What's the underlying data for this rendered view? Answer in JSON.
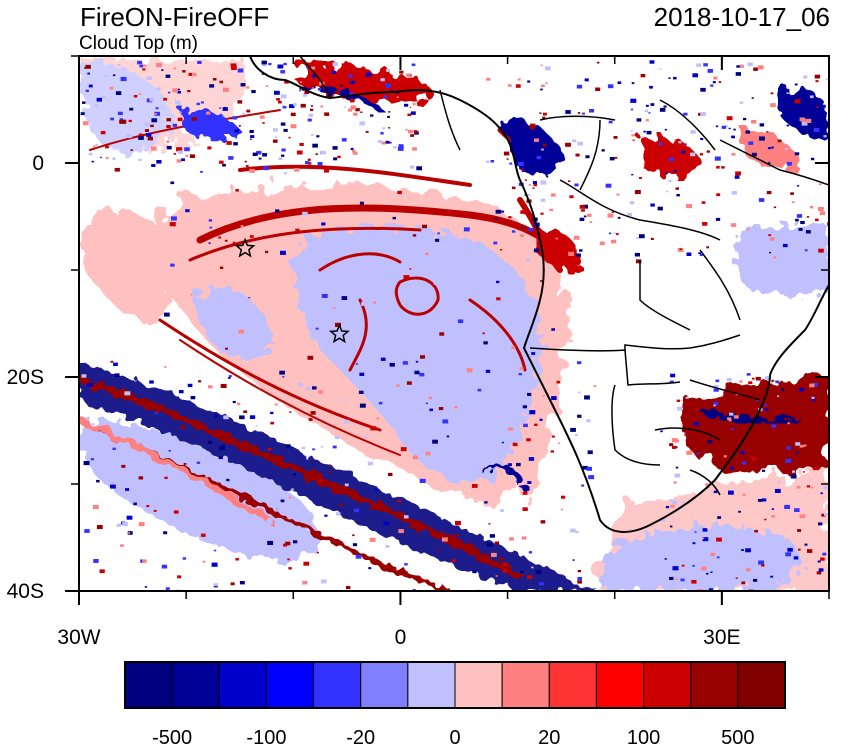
{
  "header": {
    "title": "FireON-FireOFF",
    "subtitle": "Cloud Top (m)",
    "timestamp": "2018-10-17_06"
  },
  "map": {
    "lon_range": [
      -30,
      40
    ],
    "lat_range": [
      -40,
      10
    ],
    "x_ticks": [
      {
        "lon": -30,
        "label": "30W"
      },
      {
        "lon": 0,
        "label": "0"
      },
      {
        "lon": 30,
        "label": "30E"
      }
    ],
    "y_ticks": [
      {
        "lat": 0,
        "label": "0"
      },
      {
        "lat": -20,
        "label": "20S"
      },
      {
        "lat": -40,
        "label": "40S"
      }
    ],
    "markers": [
      {
        "name": "star-marker-1",
        "lon": -14.5,
        "lat": -8
      },
      {
        "name": "star-marker-2",
        "lon": -5.7,
        "lat": -16
      }
    ]
  },
  "colorbar": {
    "colors": [
      "#000080",
      "#000099",
      "#0000cc",
      "#0000ff",
      "#3333ff",
      "#8080ff",
      "#c0c0ff",
      "#ffc0c0",
      "#ff8080",
      "#ff3333",
      "#ff0000",
      "#cc0000",
      "#990000",
      "#800000"
    ],
    "labels": [
      "-500",
      "-100",
      "-20",
      "0",
      "20",
      "100",
      "500"
    ]
  },
  "colors": {
    "light_blue": "#c0c0ff",
    "light_pink": "#ffc0c0",
    "dark_red": "#aa0000",
    "navy": "#000080"
  }
}
